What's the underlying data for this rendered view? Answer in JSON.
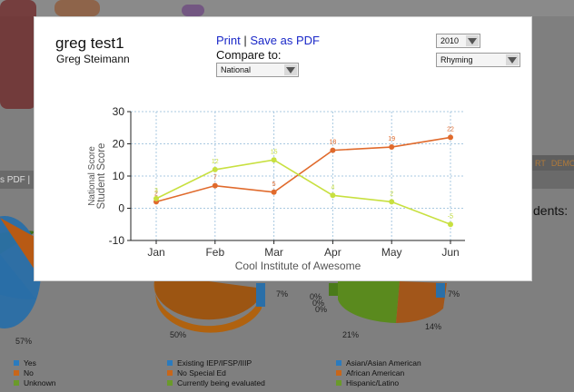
{
  "background_page": {
    "strip_left_text": "s PDF |",
    "strip_right_items": [
      "RT",
      "DEMO"
    ],
    "heading_partial": "dents:",
    "pie_labels": [
      "57%",
      "50%",
      "7%",
      "21%",
      "14%",
      "7%",
      "0%",
      "0%",
      "0%"
    ],
    "legends": [
      {
        "items": [
          {
            "label": "Yes",
            "color": "#2a7bbf"
          },
          {
            "label": "No",
            "color": "#c8661a"
          },
          {
            "label": "Unknown",
            "color": "#6a9a2a"
          }
        ]
      },
      {
        "items": [
          {
            "label": "Existing IEP/IFSP/IIIP",
            "color": "#2a7bbf"
          },
          {
            "label": "No Special Ed",
            "color": "#c8661a"
          },
          {
            "label": "Currently being evaluated",
            "color": "#6a9a2a"
          }
        ]
      },
      {
        "items": [
          {
            "label": "Asian/Asian American",
            "color": "#2a7bbf"
          },
          {
            "label": "African American",
            "color": "#c8661a"
          },
          {
            "label": "Hispanic/Latino",
            "color": "#6a9a2a"
          }
        ]
      }
    ]
  },
  "modal": {
    "user_name": "greg test1",
    "user_fullname": "Greg Steimann",
    "print_link": "Print",
    "separator": "|",
    "save_pdf_link": "Save as PDF",
    "compare_label": "Compare to:",
    "compare_select_value": "National",
    "year_select_value": "2010",
    "skill_select_value": "Rhyming"
  },
  "chart_data": {
    "type": "line",
    "categories": [
      "Jan",
      "Feb",
      "Mar",
      "Apr",
      "May",
      "Jun"
    ],
    "series": [
      {
        "name": "Student Score",
        "color": "#e06a2c",
        "values": [
          2,
          7,
          5,
          18,
          19,
          22
        ]
      },
      {
        "name": "National Score",
        "color": "#c8e040",
        "values": [
          3,
          12,
          15,
          4,
          2,
          -5
        ]
      }
    ],
    "xlabel": "Cool Institute of Awesome",
    "ylabel_lines": [
      "National Score",
      "Student Score"
    ],
    "ylim": [
      -10,
      30
    ],
    "yticks": [
      -10,
      0,
      10,
      20,
      30
    ],
    "grid": true,
    "colors": {
      "grid": "#a8c8e0",
      "axis": "#222222",
      "label": "#555555"
    }
  }
}
